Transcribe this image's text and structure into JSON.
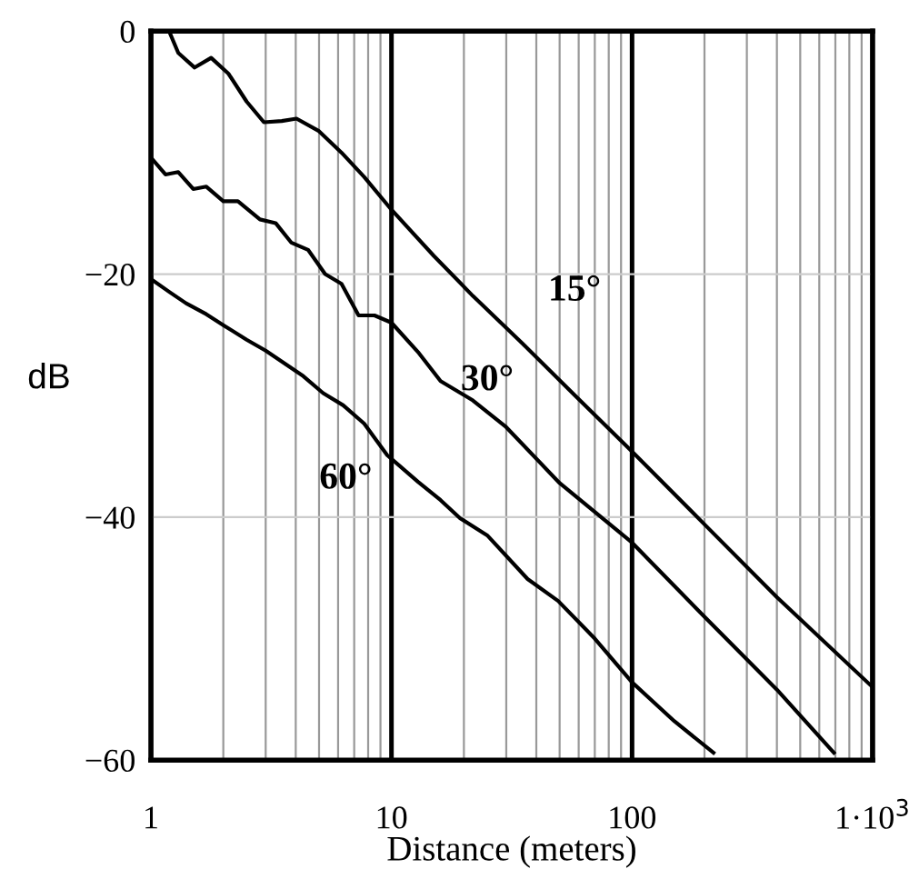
{
  "chart_data": {
    "type": "line",
    "xlabel": "Distance (meters)",
    "ylabel": "dB",
    "log": "x",
    "xlim": [
      1,
      1000
    ],
    "ylim": [
      -60,
      0
    ],
    "xticks": [
      1,
      10,
      100,
      {
        "value": 1000,
        "label": "1·10$^{3}$"
      }
    ],
    "yticks": [
      0,
      {
        "value": -20,
        "label": "−20"
      },
      {
        "value": -40,
        "label": "−40"
      },
      {
        "value": -60,
        "label": "−60"
      }
    ],
    "grid": true,
    "marker": "none",
    "line_style": "solid",
    "series": [
      {
        "name": "15°",
        "color": "#000000",
        "x": [
          1.19,
          1.3,
          1.52,
          1.78,
          2.1,
          2.5,
          2.95,
          3.5,
          4.03,
          4.97,
          6.2,
          7.7,
          10,
          15,
          21.8,
          35,
          58,
          100,
          200,
          400,
          1000
        ],
        "values": [
          0,
          -1.8,
          -3.0,
          -2.2,
          -3.5,
          -5.8,
          -7.5,
          -7.4,
          -7.2,
          -8.2,
          -10,
          -12,
          -14.7,
          -18.5,
          -21.8,
          -25.7,
          -30,
          -34.6,
          -40.6,
          -46.6,
          -54
        ]
      },
      {
        "name": "30°",
        "color": "#000000",
        "x": [
          1,
          1.15,
          1.3,
          1.5,
          1.7,
          2,
          2.3,
          2.84,
          3.3,
          3.83,
          4.5,
          5.3,
          6.2,
          7.3,
          8.5,
          10,
          13,
          16,
          21.8,
          30,
          50,
          100,
          200,
          400,
          690
        ],
        "values": [
          -10.4,
          -11.8,
          -11.6,
          -13,
          -12.8,
          -14,
          -14,
          -15.5,
          -15.8,
          -17.4,
          -18,
          -20,
          -20.8,
          -23.4,
          -23.4,
          -24,
          -26.5,
          -28.8,
          -30.4,
          -32.6,
          -37.2,
          -42.1,
          -48.2,
          -54.2,
          -59.4
        ]
      },
      {
        "name": "60°",
        "color": "#000000",
        "x": [
          1,
          1.2,
          1.4,
          1.7,
          2,
          2.5,
          3,
          3.5,
          4.3,
          5.2,
          6.3,
          7.7,
          9.6,
          12.9,
          16,
          19.3,
          25,
          36.8,
          49.3,
          70,
          100,
          150,
          218
        ],
        "values": [
          -20.4,
          -21.5,
          -22.4,
          -23.3,
          -24.2,
          -25.4,
          -26.3,
          -27.2,
          -28.4,
          -29.8,
          -30.8,
          -32.3,
          -34.9,
          -37.1,
          -38.6,
          -40.1,
          -41.5,
          -45.1,
          -46.9,
          -50,
          -53.6,
          -56.8,
          -59.4
        ]
      }
    ]
  }
}
